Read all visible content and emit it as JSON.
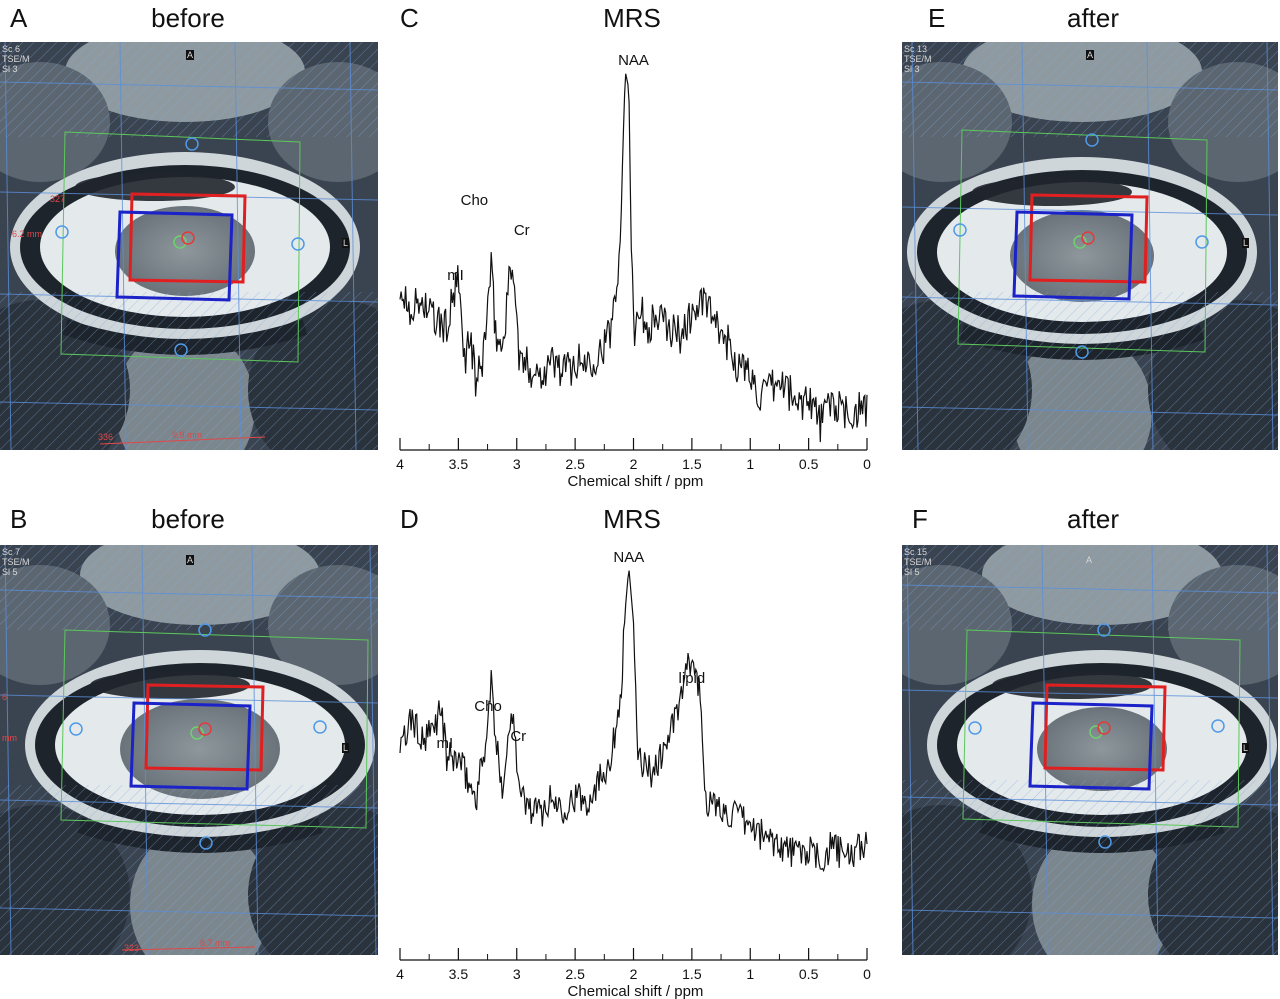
{
  "panels": {
    "A": {
      "letter": "A",
      "title": "before",
      "overlay": [
        "Sc 6",
        "TSE/M",
        "Sl 3"
      ],
      "orient_top": "A",
      "orient_side": "L",
      "meas1": "327",
      "meas2": "6.2 mm",
      "meas3": "336",
      "meas4": "9.9 mm"
    },
    "B": {
      "letter": "B",
      "title": "before",
      "overlay": [
        "Sc 7",
        "TSE/M",
        "Sl 5"
      ],
      "orient_top": "A",
      "orient_side": "L",
      "meas1": "6",
      "meas2": "mm",
      "meas3": "323",
      "meas4": "8.7 mm"
    },
    "C": {
      "letter": "C",
      "title": "MRS"
    },
    "D": {
      "letter": "D",
      "title": "MRS"
    },
    "E": {
      "letter": "E",
      "title": "after",
      "overlay": [
        "Sc 13",
        "TSE/M",
        "Sl 3"
      ],
      "orient_top": "A",
      "orient_side": "L"
    },
    "F": {
      "letter": "F",
      "title": "after",
      "overlay": [
        "Sc 15",
        "TSE/M",
        "Sl 5"
      ],
      "orient_top": "A",
      "orient_side": "L"
    }
  },
  "colors": {
    "voxel_before": "#e02020",
    "voxel_after": "#1a22c8",
    "grid": "#5b8fd9",
    "fov": "#5bc85b"
  },
  "chart_data": [
    {
      "type": "line",
      "panel": "C",
      "title": "MRS",
      "xlabel": "Chemical shift / ppm",
      "xlim": [
        4,
        0
      ],
      "x_reversed": true,
      "ticks": [
        "4",
        "3.5",
        "3",
        "2.5",
        "2",
        "1.5",
        "1",
        "0.5",
        "0"
      ],
      "tick_values": [
        4,
        3.5,
        3,
        2.5,
        2,
        1.5,
        1,
        0.5,
        0
      ],
      "ylim": [
        0,
        1
      ],
      "x": [
        4.0,
        3.9,
        3.8,
        3.7,
        3.6,
        3.55,
        3.5,
        3.45,
        3.4,
        3.35,
        3.3,
        3.25,
        3.22,
        3.18,
        3.12,
        3.08,
        3.03,
        2.98,
        2.9,
        2.8,
        2.7,
        2.6,
        2.5,
        2.4,
        2.3,
        2.2,
        2.12,
        2.07,
        2.04,
        2.02,
        1.99,
        1.95,
        1.9,
        1.8,
        1.7,
        1.6,
        1.5,
        1.4,
        1.35,
        1.3,
        1.2,
        1.1,
        1.0,
        0.9,
        0.8,
        0.7,
        0.6,
        0.5,
        0.4,
        0.3,
        0.2,
        0.1,
        0.0
      ],
      "values": [
        0.33,
        0.28,
        0.3,
        0.24,
        0.22,
        0.3,
        0.36,
        0.12,
        0.2,
        0.05,
        0.1,
        0.28,
        0.4,
        0.2,
        0.15,
        0.33,
        0.42,
        0.12,
        0.1,
        0.08,
        0.12,
        0.09,
        0.11,
        0.12,
        0.14,
        0.2,
        0.45,
        1.0,
        0.95,
        0.5,
        0.22,
        0.3,
        0.22,
        0.25,
        0.22,
        0.2,
        0.26,
        0.3,
        0.28,
        0.22,
        0.18,
        0.1,
        0.08,
        0.0,
        0.04,
        0.05,
        -0.02,
        0.02,
        -0.07,
        0.0,
        -0.05,
        -0.03,
        -0.04
      ],
      "annotations": [
        {
          "text": "NAA",
          "x": 2.0
        },
        {
          "text": "Cho",
          "x": 3.2
        },
        {
          "text": "Cr",
          "x": 3.0
        },
        {
          "text": "mI",
          "x": 3.55
        }
      ]
    },
    {
      "type": "line",
      "panel": "D",
      "title": "MRS",
      "xlabel": "Chemical shift / ppm",
      "xlim": [
        4,
        0
      ],
      "x_reversed": true,
      "ticks": [
        "4",
        "3.5",
        "3",
        "2.5",
        "2",
        "1.5",
        "1",
        "0.5",
        "0"
      ],
      "tick_values": [
        4,
        3.5,
        3,
        2.5,
        2,
        1.5,
        1,
        0.5,
        0
      ],
      "ylim": [
        0,
        1
      ],
      "x": [
        4.0,
        3.9,
        3.8,
        3.7,
        3.65,
        3.6,
        3.5,
        3.4,
        3.35,
        3.3,
        3.25,
        3.22,
        3.18,
        3.12,
        3.07,
        3.03,
        2.98,
        2.9,
        2.8,
        2.7,
        2.6,
        2.5,
        2.4,
        2.3,
        2.2,
        2.15,
        2.1,
        2.07,
        2.04,
        2.0,
        1.97,
        1.92,
        1.85,
        1.8,
        1.75,
        1.7,
        1.6,
        1.55,
        1.5,
        1.45,
        1.42,
        1.38,
        1.3,
        1.2,
        1.1,
        1.0,
        0.9,
        0.8,
        0.7,
        0.6,
        0.5,
        0.4,
        0.3,
        0.2,
        0.1,
        0.0
      ],
      "values": [
        0.32,
        0.45,
        0.35,
        0.42,
        0.5,
        0.3,
        0.3,
        0.2,
        0.15,
        0.28,
        0.4,
        0.6,
        0.35,
        0.2,
        0.38,
        0.5,
        0.18,
        0.12,
        0.1,
        0.15,
        0.12,
        0.16,
        0.14,
        0.22,
        0.3,
        0.4,
        0.6,
        0.85,
        1.0,
        0.8,
        0.35,
        0.28,
        0.25,
        0.28,
        0.32,
        0.38,
        0.5,
        0.62,
        0.65,
        0.6,
        0.45,
        0.15,
        0.12,
        0.1,
        0.08,
        0.05,
        0.02,
        0.0,
        -0.03,
        -0.05,
        -0.04,
        -0.08,
        -0.02,
        -0.06,
        -0.05,
        0.0
      ],
      "annotations": [
        {
          "text": "NAA",
          "x": 2.04
        },
        {
          "text": "lipid",
          "x": 1.5
        },
        {
          "text": "Cho",
          "x": 3.22
        },
        {
          "text": "Cr",
          "x": 3.03
        },
        {
          "text": "mI",
          "x": 3.65
        }
      ]
    }
  ]
}
